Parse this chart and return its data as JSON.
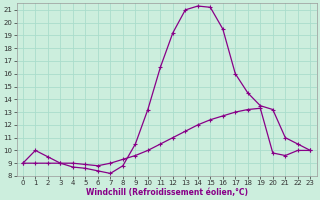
{
  "xlabel": "Windchill (Refroidissement éolien,°C)",
  "xlim": [
    -0.5,
    23.5
  ],
  "ylim": [
    8,
    21.5
  ],
  "xticks": [
    0,
    1,
    2,
    3,
    4,
    5,
    6,
    7,
    8,
    9,
    10,
    11,
    12,
    13,
    14,
    15,
    16,
    17,
    18,
    19,
    20,
    21,
    22,
    23
  ],
  "yticks": [
    8,
    9,
    10,
    11,
    12,
    13,
    14,
    15,
    16,
    17,
    18,
    19,
    20,
    21
  ],
  "line_color": "#880088",
  "bg_color": "#cceedd",
  "grid_color": "#aaddcc",
  "curve1_x": [
    0,
    1,
    2,
    3,
    4,
    5,
    6,
    7,
    8,
    9,
    10,
    11,
    12,
    13,
    14,
    15,
    16,
    17,
    18,
    19,
    20,
    21,
    22,
    23
  ],
  "curve1_y": [
    9.0,
    10.0,
    9.5,
    9.0,
    8.7,
    8.6,
    8.4,
    8.2,
    8.8,
    10.5,
    13.2,
    16.5,
    19.2,
    21.0,
    21.3,
    21.2,
    19.5,
    16.0,
    14.5,
    13.5,
    13.2,
    11.0,
    10.5,
    10.0
  ],
  "curve2_x": [
    0,
    1,
    2,
    3,
    4,
    5,
    6,
    7,
    8,
    9,
    10,
    11,
    12,
    13,
    14,
    15,
    16,
    17,
    18,
    19,
    20,
    21,
    22,
    23
  ],
  "curve2_y": [
    9.0,
    9.0,
    9.0,
    9.0,
    9.0,
    8.9,
    8.8,
    9.0,
    9.3,
    9.6,
    10.0,
    10.5,
    11.0,
    11.5,
    12.0,
    12.4,
    12.7,
    13.0,
    13.2,
    13.3,
    9.8,
    9.6,
    10.0,
    10.0
  ],
  "tick_fontsize": 5,
  "xlabel_fontsize": 5.5
}
